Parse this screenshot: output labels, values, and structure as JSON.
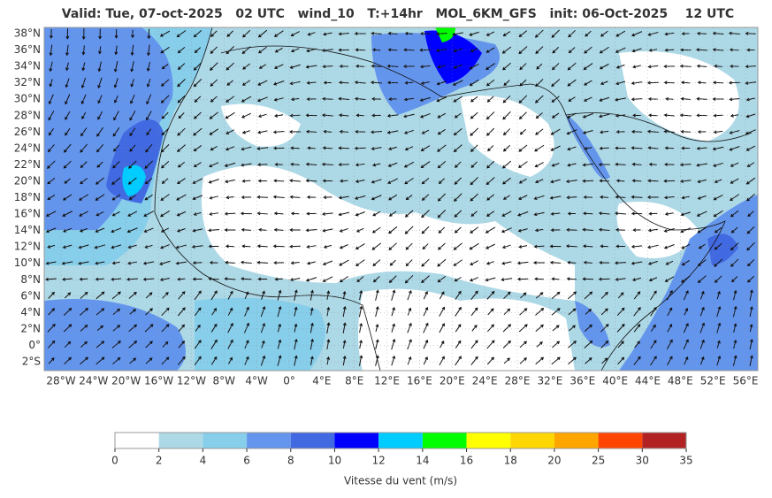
{
  "title": "Valid: Tue, 07-oct-2025   02 UTC   wind_10   T:+14hr   MOL_6KM_GFS   init: 06-Oct-2025    12 UTC",
  "map": {
    "lat_labels": [
      "38°N",
      "36°N",
      "34°N",
      "32°N",
      "30°N",
      "28°N",
      "26°N",
      "24°N",
      "22°N",
      "20°N",
      "18°N",
      "16°N",
      "14°N",
      "12°N",
      "10°N",
      "8°N",
      "6°N",
      "4°N",
      "2°N",
      "0°",
      "2°S"
    ],
    "lon_labels": [
      "28°W",
      "24°W",
      "20°W",
      "16°W",
      "12°W",
      "8°W",
      "4°W",
      "0°",
      "4°E",
      "8°E",
      "12°E",
      "16°E",
      "20°E",
      "24°E",
      "28°E",
      "32°E",
      "36°E",
      "40°E",
      "44°E",
      "48°E",
      "52°E",
      "56°E"
    ]
  },
  "colorbar": {
    "ticks": [
      0,
      2,
      4,
      6,
      8,
      10,
      12,
      14,
      16,
      18,
      20,
      25,
      30,
      35
    ],
    "colors": [
      "#ffffff",
      "#add8e6",
      "#87ceeb",
      "#6495ed",
      "#4169e1",
      "#0000ff",
      "#00ccff",
      "#00ff00",
      "#ffff00",
      "#ffd700",
      "#ffa500",
      "#ff4500",
      "#b22222"
    ],
    "label": "Vitesse du vent (m/s)"
  }
}
